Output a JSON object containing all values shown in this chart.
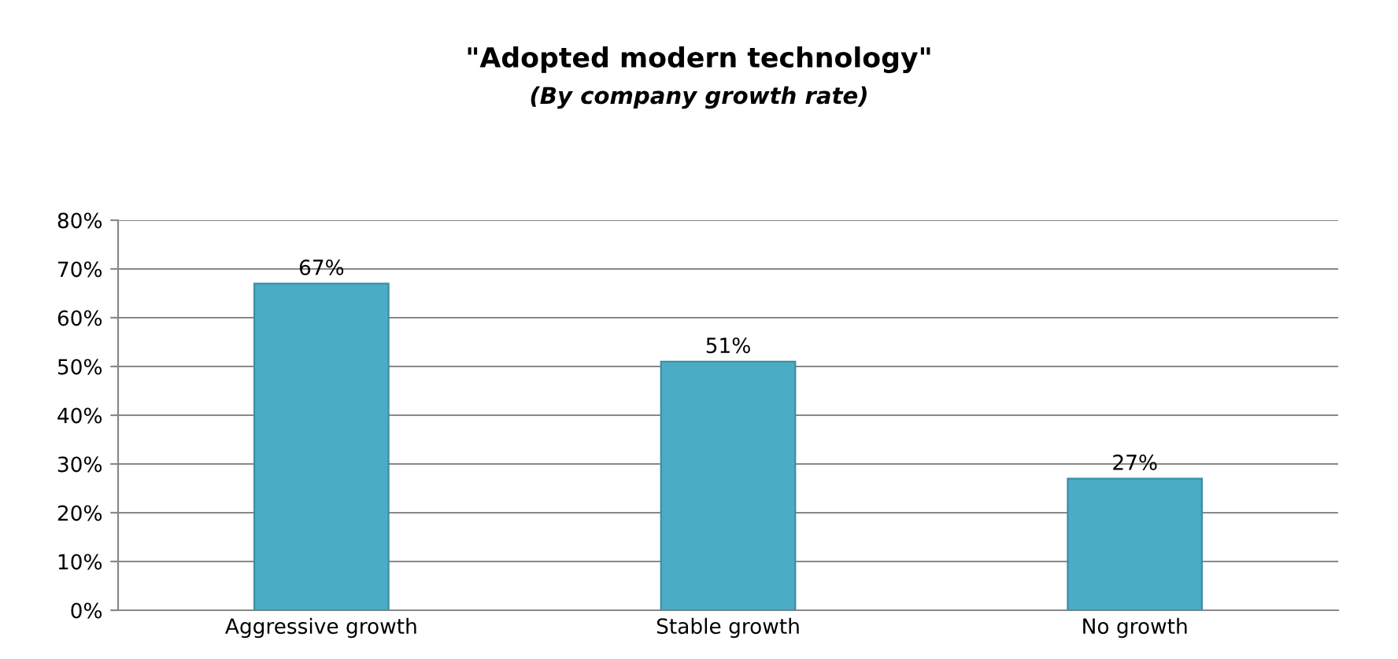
{
  "chart_data": {
    "type": "bar",
    "title": "\"Adopted modern technology\"",
    "subtitle": "(By company growth rate)",
    "categories": [
      "Aggressive growth",
      "Stable growth",
      "No growth"
    ],
    "values": [
      67,
      51,
      27
    ],
    "color": "#4bacc6",
    "value_labels": [
      "67%",
      "51%",
      "27%"
    ],
    "ylim": [
      0,
      80
    ],
    "yticks": [
      {
        "value": 0,
        "label": "0%"
      },
      {
        "value": 10,
        "label": "10%"
      },
      {
        "value": 20,
        "label": "20%"
      },
      {
        "value": 30,
        "label": "30%"
      },
      {
        "value": 40,
        "label": "40%"
      },
      {
        "value": 50,
        "label": "50%"
      },
      {
        "value": 60,
        "label": "60%"
      },
      {
        "value": 70,
        "label": "70%"
      },
      {
        "value": 80,
        "label": "80%"
      }
    ],
    "grid": "y"
  }
}
